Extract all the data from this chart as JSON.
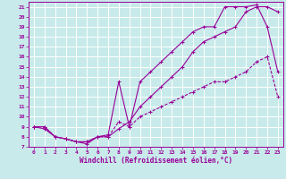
{
  "xlabel": "Windchill (Refroidissement éolien,°C)",
  "bg_color": "#c8eaea",
  "grid_color": "#ffffff",
  "line_color": "#990099",
  "xlim": [
    -0.5,
    23.5
  ],
  "ylim": [
    7,
    21.5
  ],
  "xticks": [
    0,
    1,
    2,
    3,
    4,
    5,
    6,
    7,
    8,
    9,
    10,
    11,
    12,
    13,
    14,
    15,
    16,
    17,
    18,
    19,
    20,
    21,
    22,
    23
  ],
  "yticks": [
    7,
    8,
    9,
    10,
    11,
    12,
    13,
    14,
    15,
    16,
    17,
    18,
    19,
    20,
    21
  ],
  "line1_x": [
    0,
    1,
    2,
    3,
    4,
    5,
    6,
    7,
    8,
    9,
    10,
    11,
    12,
    13,
    14,
    15,
    16,
    17,
    18,
    19,
    20,
    21,
    22,
    23
  ],
  "line1_y": [
    9,
    8.8,
    8.0,
    7.8,
    7.5,
    7.5,
    8.0,
    8.0,
    8.8,
    9.5,
    11.0,
    12.0,
    13.0,
    14.0,
    15.0,
    16.5,
    17.5,
    18.0,
    18.5,
    19.0,
    20.5,
    21.0,
    21.0,
    20.5
  ],
  "line2_x": [
    0,
    1,
    2,
    3,
    4,
    5,
    6,
    7,
    8,
    9,
    10,
    11,
    12,
    13,
    14,
    15,
    16,
    17,
    18,
    19,
    20,
    21,
    22,
    23
  ],
  "line2_y": [
    9,
    9.0,
    8.0,
    7.8,
    7.5,
    7.3,
    8.0,
    8.2,
    13.5,
    9.0,
    13.5,
    14.5,
    15.5,
    16.5,
    17.5,
    18.5,
    19.0,
    19.0,
    21.0,
    21.0,
    21.0,
    21.2,
    19.0,
    14.5
  ],
  "line3_x": [
    0,
    1,
    2,
    3,
    4,
    5,
    6,
    7,
    8,
    9,
    10,
    11,
    12,
    13,
    14,
    15,
    16,
    17,
    18,
    19,
    20,
    21,
    22,
    23
  ],
  "line3_y": [
    9,
    9.0,
    8.0,
    7.8,
    7.5,
    7.5,
    8.0,
    8.0,
    9.5,
    9.0,
    10.0,
    10.5,
    11.0,
    11.5,
    12.0,
    12.5,
    13.0,
    13.5,
    13.5,
    14.0,
    14.5,
    15.5,
    16.0,
    12.0
  ]
}
